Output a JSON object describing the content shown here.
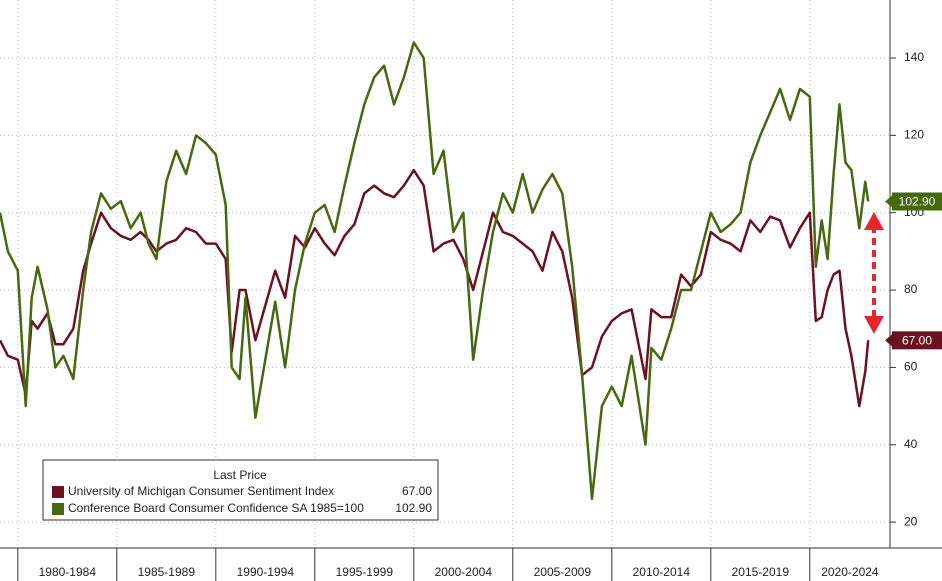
{
  "chart_data": {
    "type": "line",
    "x": [
      1979.1,
      1979.5,
      1980.0,
      1980.4,
      1980.7,
      1981.0,
      1981.5,
      1981.9,
      1982.3,
      1982.8,
      1983.3,
      1983.7,
      1984.2,
      1984.7,
      1985.2,
      1985.7,
      1986.2,
      1986.6,
      1987.0,
      1987.5,
      1988.0,
      1988.5,
      1989.0,
      1989.5,
      1990.0,
      1990.5,
      1990.8,
      1991.2,
      1991.5,
      1992.0,
      1992.5,
      1993.0,
      1993.5,
      1994.0,
      1994.5,
      1995.0,
      1995.5,
      1996.0,
      1996.5,
      1997.0,
      1997.5,
      1998.0,
      1998.5,
      1999.0,
      1999.5,
      2000.0,
      2000.5,
      2001.0,
      2001.5,
      2002.0,
      2002.5,
      2003.0,
      2003.5,
      2004.0,
      2004.5,
      2005.0,
      2005.5,
      2006.0,
      2006.5,
      2007.0,
      2007.5,
      2008.0,
      2008.5,
      2009.0,
      2009.5,
      2010.0,
      2010.5,
      2011.0,
      2011.7,
      2012.0,
      2012.5,
      2013.0,
      2013.5,
      2014.0,
      2014.5,
      2015.0,
      2015.5,
      2016.0,
      2016.5,
      2017.0,
      2017.5,
      2018.0,
      2018.5,
      2019.0,
      2019.5,
      2020.0,
      2020.3,
      2020.6,
      2020.9,
      2021.2,
      2021.5,
      2021.8,
      2022.1,
      2022.5,
      2022.8,
      2022.95
    ],
    "series": [
      {
        "name": "University of Michigan Consumer Sentiment Index",
        "color": "#6b1222",
        "last_price": "67.00",
        "values": [
          67,
          63,
          62,
          53,
          72,
          70,
          74,
          66,
          66,
          70,
          85,
          92,
          100,
          96,
          94,
          93,
          95,
          93,
          90,
          92,
          93,
          96,
          95,
          92,
          92,
          88,
          64,
          80,
          80,
          67,
          76,
          85,
          78,
          94,
          91,
          96,
          92,
          89,
          94,
          97,
          105,
          107,
          105,
          104,
          107,
          111,
          107,
          90,
          92,
          93,
          88,
          80,
          90,
          100,
          95,
          94,
          92,
          90,
          85,
          95,
          90,
          78,
          58,
          60,
          68,
          72,
          74,
          75,
          57,
          75,
          73,
          73,
          84,
          81,
          84,
          95,
          93,
          92,
          90,
          98,
          95,
          99,
          98,
          91,
          96,
          100,
          72,
          73,
          80,
          84,
          85,
          70,
          63,
          50,
          59,
          67
        ]
      },
      {
        "name": "Conference Board Consumer Confidence SA 1985=100",
        "color": "#46680f",
        "last_price": "102.90",
        "values": [
          100,
          90,
          85,
          50,
          78,
          86,
          75,
          60,
          63,
          57,
          80,
          95,
          105,
          101,
          103,
          96,
          100,
          92,
          88,
          108,
          116,
          110,
          120,
          118,
          115,
          102,
          60,
          57,
          78,
          47,
          62,
          77,
          60,
          80,
          92,
          100,
          102,
          95,
          107,
          118,
          128,
          135,
          138,
          128,
          135,
          144,
          140,
          110,
          116,
          95,
          100,
          62,
          80,
          95,
          105,
          100,
          110,
          100,
          106,
          110,
          105,
          86,
          58,
          26,
          50,
          55,
          50,
          63,
          40,
          65,
          62,
          70,
          80,
          80,
          90,
          100,
          95,
          97,
          100,
          113,
          120,
          126,
          132,
          124,
          132,
          130,
          86,
          98,
          88,
          110,
          128,
          113,
          111,
          96,
          108,
          102.9
        ]
      }
    ],
    "legend_title": "Last Price",
    "xlim": [
      1979.1,
      2024.05
    ],
    "xticks": [
      1980,
      1985,
      1990,
      1995,
      2000,
      2005,
      2010,
      2015,
      2020
    ],
    "x_periods": [
      "1980-1984",
      "1985-1989",
      "1990-1994",
      "1995-1999",
      "2000-2004",
      "2005-2009",
      "2010-2014",
      "2015-2019",
      "2020-2024"
    ],
    "ylim": [
      13.3,
      155
    ],
    "yticks": [
      20,
      40,
      60,
      80,
      100,
      120,
      140
    ],
    "grid": true
  }
}
